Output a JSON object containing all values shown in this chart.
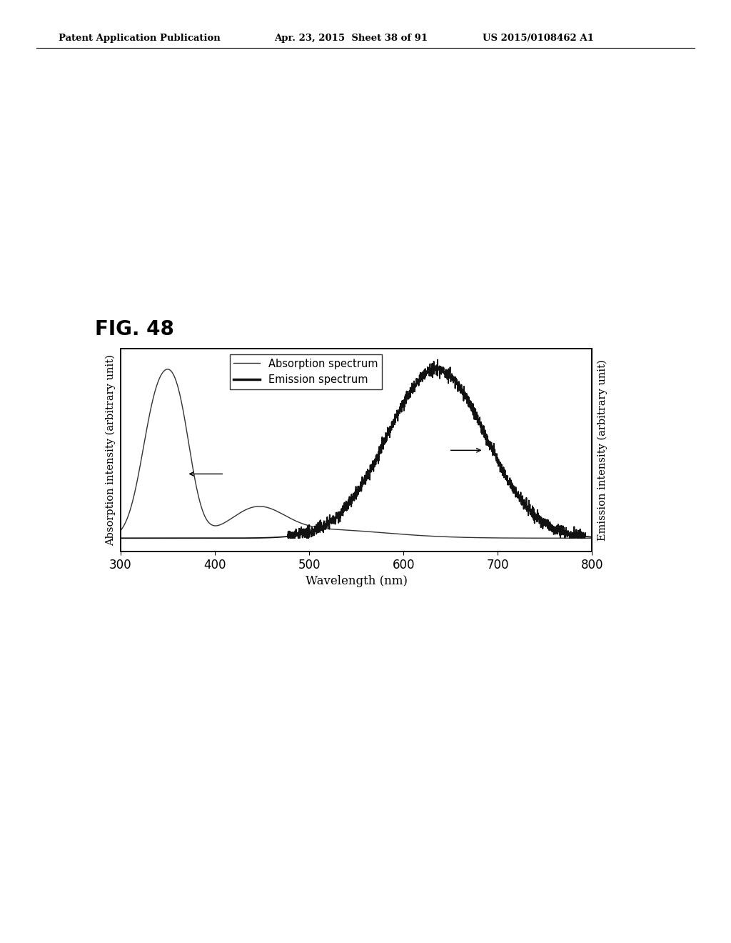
{
  "title": "FIG. 48",
  "xlabel": "Wavelength (nm)",
  "ylabel_left": "Absorption intensity (arbitrary unit)",
  "ylabel_right": "Emission intensity (arbitrary unit)",
  "xmin": 300,
  "xmax": 800,
  "xticks": [
    300,
    400,
    500,
    600,
    700,
    800
  ],
  "legend_labels": [
    "Absorption spectrum",
    "Emission spectrum"
  ],
  "absorption_color": "#333333",
  "emission_color": "#111111",
  "background_color": "#ffffff",
  "header1": "Patent Application Publication",
  "header2": "Apr. 23, 2015  Sheet 38 of 91",
  "header3": "US 2015/0108462 A1",
  "fig_label": "FIG. 48"
}
